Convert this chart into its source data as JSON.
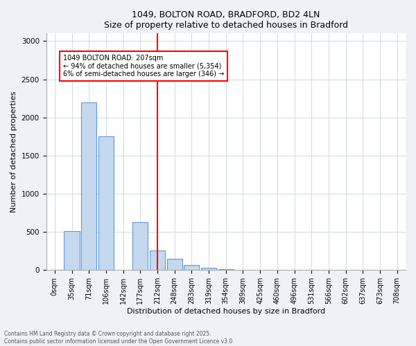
{
  "title1": "1049, BOLTON ROAD, BRADFORD, BD2 4LN",
  "title2": "Size of property relative to detached houses in Bradford",
  "xlabel": "Distribution of detached houses by size in Bradford",
  "ylabel": "Number of detached properties",
  "bar_labels": [
    "0sqm",
    "35sqm",
    "71sqm",
    "106sqm",
    "142sqm",
    "177sqm",
    "212sqm",
    "248sqm",
    "283sqm",
    "319sqm",
    "354sqm",
    "389sqm",
    "425sqm",
    "460sqm",
    "496sqm",
    "531sqm",
    "566sqm",
    "602sqm",
    "637sqm",
    "673sqm",
    "708sqm"
  ],
  "bar_values": [
    0,
    510,
    2200,
    1750,
    0,
    630,
    260,
    150,
    70,
    30,
    15,
    5,
    0,
    0,
    0,
    0,
    0,
    0,
    0,
    0,
    0
  ],
  "bar_color": "#c5d8ee",
  "bar_edge_color": "#5b9bd5",
  "vline_x": 6,
  "vline_color": "red",
  "annotation_text": "1049 BOLTON ROAD: 207sqm\n← 94% of detached houses are smaller (5,354)\n6% of semi-detached houses are larger (346) →",
  "annotation_box_color": "white",
  "annotation_box_edge": "red",
  "ylim": [
    0,
    3100
  ],
  "yticks": [
    0,
    500,
    1000,
    1500,
    2000,
    2500,
    3000
  ],
  "footnote1": "Contains HM Land Registry data © Crown copyright and database right 2025.",
  "footnote2": "Contains public sector information licensed under the Open Government Licence v3.0.",
  "background_color": "#eef2f7",
  "plot_bg_color": "#ffffff",
  "grid_color": "#d0d8e4"
}
